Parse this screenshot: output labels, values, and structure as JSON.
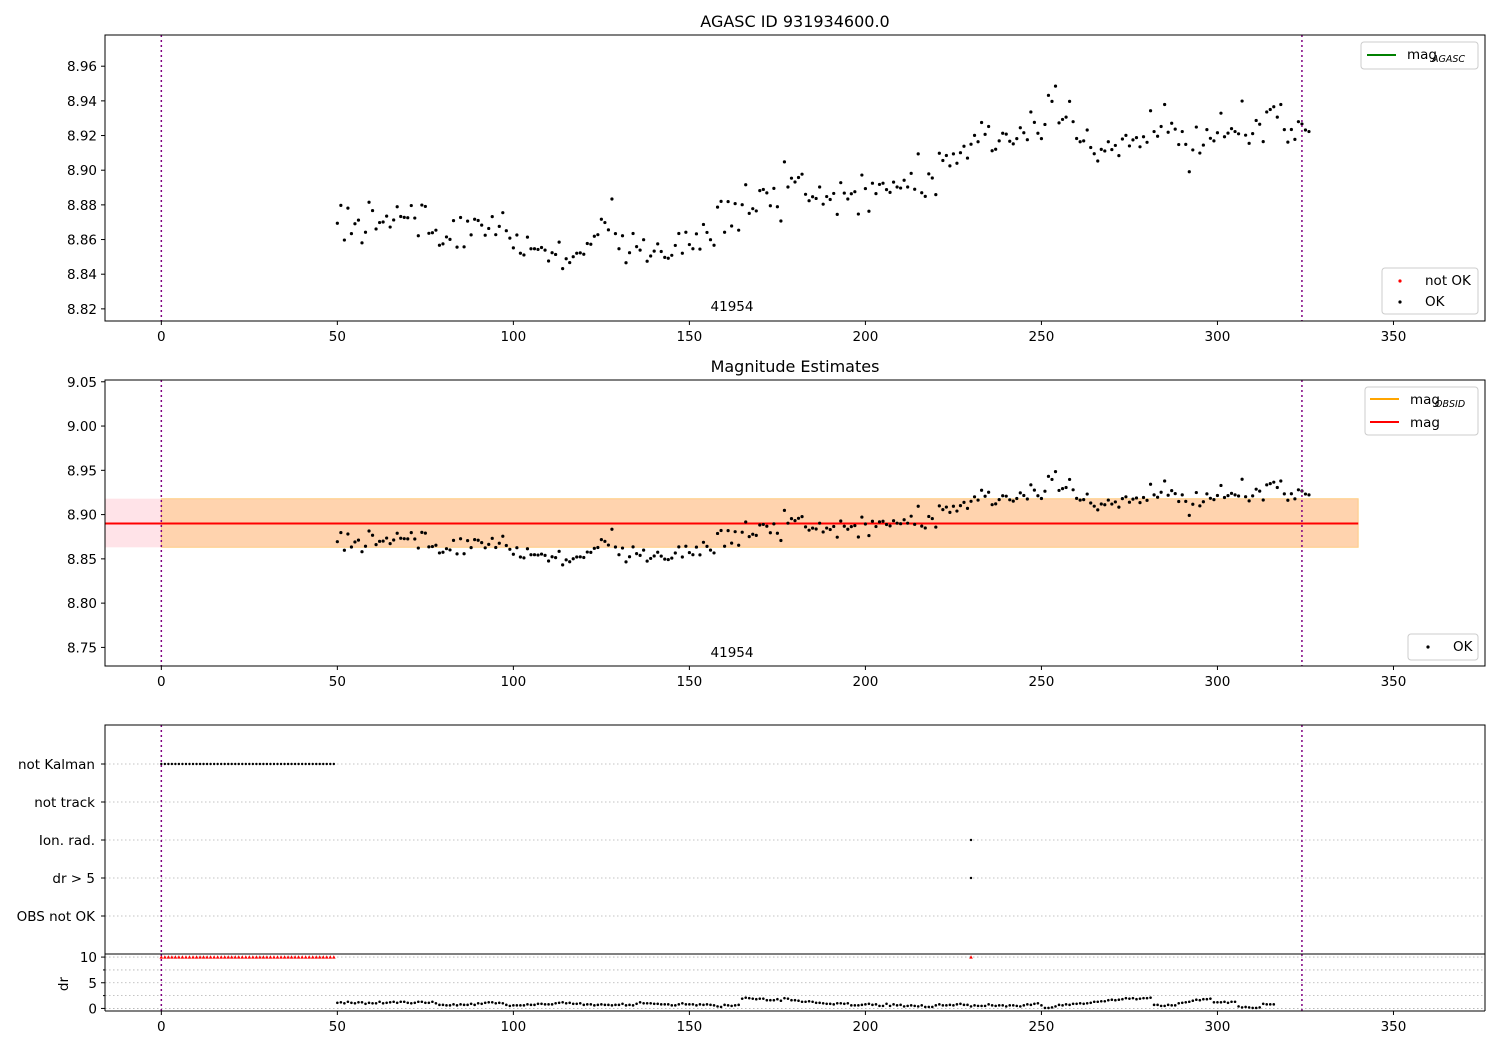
{
  "chart_data": [
    {
      "type": "scatter",
      "title": "AGASC ID 931934600.0",
      "annotation": "41954",
      "xlim": [
        -16,
        376
      ],
      "ylim": [
        8.813,
        8.978
      ],
      "xticks": [
        0,
        50,
        100,
        150,
        200,
        250,
        300,
        350
      ],
      "yticks": [
        8.82,
        8.84,
        8.86,
        8.88,
        8.9,
        8.92,
        8.94,
        8.96
      ],
      "vlines": [
        0,
        324
      ],
      "legend_lines": [
        {
          "label": "mag",
          "subscript": "AGASC",
          "color": "#008000"
        }
      ],
      "legend_points": [
        {
          "label": "not OK",
          "color": "#ff0000"
        },
        {
          "label": "OK",
          "color": "#000000"
        }
      ],
      "series": [
        {
          "name": "OK",
          "color": "#000000",
          "x_start": 50,
          "x_step": 1,
          "y": [
            8.8694,
            8.8797,
            8.8597,
            8.8781,
            8.8634,
            8.8691,
            8.8712,
            8.8581,
            8.8642,
            8.8815,
            8.8767,
            8.8661,
            8.8698,
            8.8701,
            8.8735,
            8.8672,
            8.8713,
            8.8789,
            8.8733,
            8.8728,
            8.8726,
            8.8796,
            8.8724,
            8.8622,
            8.8799,
            8.8791,
            8.8636,
            8.8639,
            8.8654,
            8.8567,
            8.8575,
            8.8615,
            8.8601,
            8.8709,
            8.8556,
            8.8727,
            8.8558,
            8.8706,
            8.8627,
            8.8717,
            8.871,
            8.8683,
            8.8625,
            8.8664,
            8.8732,
            8.8628,
            8.8676,
            8.8755,
            8.8651,
            8.8608,
            8.8552,
            8.8626,
            8.8521,
            8.8511,
            8.8614,
            8.8547,
            8.8547,
            8.8543,
            8.8554,
            8.8539,
            8.8476,
            8.8524,
            8.8514,
            8.8585,
            8.8432,
            8.8489,
            8.8467,
            8.8501,
            8.8521,
            8.8523,
            8.8515,
            8.8577,
            8.8573,
            8.8619,
            8.8628,
            8.8717,
            8.8698,
            8.8656,
            8.8834,
            8.8634,
            8.8547,
            8.8622,
            8.8466,
            8.8524,
            8.8635,
            8.8559,
            8.8539,
            8.8599,
            8.8475,
            8.8505,
            8.8533,
            8.8575,
            8.8531,
            8.8497,
            8.8492,
            8.8509,
            8.8566,
            8.8635,
            8.8521,
            8.8642,
            8.8571,
            8.8547,
            8.8633,
            8.8545,
            8.8687,
            8.8641,
            8.8599,
            8.8567,
            8.8787,
            8.882,
            8.8642,
            8.8819,
            8.8678,
            8.8807,
            8.8654,
            8.8801,
            8.8916,
            8.8751,
            8.8778,
            8.8765,
            8.8882,
            8.8889,
            8.8869,
            8.8795,
            8.8895,
            8.8789,
            8.8707,
            8.9048,
            8.8903,
            8.8954,
            8.8932,
            8.8958,
            8.8977,
            8.8861,
            8.8824,
            8.8847,
            8.8837,
            8.8903,
            8.8804,
            8.8848,
            8.8831,
            8.8866,
            8.8745,
            8.8928,
            8.8868,
            8.8834,
            8.8864,
            8.8876,
            8.8747,
            8.8972,
            8.8894,
            8.8763,
            8.8925,
            8.8865,
            8.8918,
            8.8925,
            8.8888,
            8.8872,
            8.8931,
            8.8903,
            8.8897,
            8.8942,
            8.8903,
            8.8982,
            8.889,
            8.9094,
            8.887,
            8.8849,
            8.8979,
            8.8955,
            8.8859,
            8.9098,
            8.9056,
            8.9085,
            8.9025,
            8.9094,
            8.904,
            8.9101,
            8.9138,
            8.907,
            8.915,
            8.9201,
            8.9164,
            8.9275,
            8.9207,
            8.9252,
            8.9112,
            8.9121,
            8.9169,
            8.9213,
            8.9208,
            8.9167,
            8.9152,
            8.9182,
            8.9245,
            8.9216,
            8.9176,
            8.9336,
            8.9276,
            8.9213,
            8.9182,
            8.9264,
            8.9432,
            8.9397,
            8.9485,
            8.9273,
            8.9293,
            8.9306,
            8.9397,
            8.928,
            8.9183,
            8.9164,
            8.9169,
            8.9232,
            8.9131,
            8.9095,
            8.9053,
            8.912,
            8.9111,
            8.9164,
            8.9119,
            8.9143,
            8.9084,
            8.918,
            8.9201,
            8.914,
            8.9175,
            8.9188,
            8.9135,
            8.9193,
            8.9161,
            8.9343,
            8.9223,
            8.9196,
            8.9252,
            8.9379,
            8.9219,
            8.9271,
            8.9237,
            8.9148,
            8.9223,
            8.9149,
            8.8991,
            8.9117,
            8.9249,
            8.9099,
            8.9145,
            8.9234,
            8.9184,
            8.9169,
            8.9216,
            8.9329,
            8.9193,
            8.9214,
            8.924,
            8.9223,
            8.921,
            8.9399,
            8.9202,
            8.9155,
            8.9211,
            8.9287,
            8.9265,
            8.9165,
            8.9336,
            8.935,
            8.9366,
            8.9306,
            8.9379,
            8.9234,
            8.9162,
            8.9235,
            8.9178,
            8.928,
            8.9267,
            8.9232,
            8.9223
          ]
        }
      ]
    },
    {
      "type": "scatter",
      "title": "Magnitude Estimates",
      "annotation": "41954",
      "xlim": [
        -16,
        376
      ],
      "ylim": [
        8.729,
        9.052
      ],
      "xticks": [
        0,
        50,
        100,
        150,
        200,
        250,
        300,
        350
      ],
      "yticks": [
        8.75,
        8.8,
        8.85,
        8.9,
        8.95,
        9.0,
        9.05
      ],
      "vlines": [
        0,
        324
      ],
      "mag_line": {
        "y": 8.89,
        "x_range": [
          -16,
          340
        ],
        "color": "#ff0000"
      },
      "mag_band": {
        "y_range": [
          8.863,
          8.918
        ],
        "x_range": [
          -16,
          340
        ],
        "color": "#ffc0cb"
      },
      "obsid_band": {
        "y_range": [
          8.863,
          8.918
        ],
        "x_range": [
          0,
          340
        ],
        "color": "#ffa500"
      },
      "legend_lines": [
        {
          "label": "mag",
          "subscript": "OBSID",
          "color": "#ffa500"
        },
        {
          "label": "mag",
          "subscript": "",
          "color": "#ff0000"
        }
      ],
      "legend_points": [
        {
          "label": "OK",
          "color": "#000000"
        }
      ],
      "series_ref": "same OK points as first panel"
    },
    {
      "type": "scatter",
      "title": "",
      "xlim": [
        -16,
        376
      ],
      "categories": [
        "not Kalman",
        "not track",
        "Ion. rad.",
        "dr > 5",
        "OBS not OK"
      ],
      "vlines": [
        0,
        324
      ],
      "flags": {
        "not Kalman": {
          "x_range": [
            0,
            49
          ],
          "step": 1
        },
        "Ion. rad.": {
          "x": [
            230
          ]
        },
        "dr > 5": {
          "x": [
            230
          ]
        }
      }
    },
    {
      "type": "scatter",
      "ylabel": "dr",
      "xlim": [
        -16,
        376
      ],
      "ylim": [
        -0.5,
        10.6
      ],
      "yticks": [
        0,
        5,
        10
      ],
      "xticks": [
        0,
        50,
        100,
        150,
        200,
        250,
        300,
        350
      ],
      "vlines": [
        0,
        324
      ],
      "clipped_red": {
        "x_range": [
          0,
          49
        ],
        "extra_x": [
          230
        ],
        "y": 10
      },
      "dr_series": {
        "x_start": 50,
        "y": [
          1.1,
          1.2,
          1.0,
          1.3,
          1.1,
          1.0,
          1.2,
          1.2,
          0.9,
          1.1,
          1.0,
          1.0,
          1.3,
          1.0,
          1.1,
          1.2,
          1.3,
          1.1,
          1.3,
          1.3,
          1.1,
          1.0,
          1.1,
          1.3,
          1.3,
          1.1,
          1.1,
          1.3,
          1.0,
          0.7,
          0.7,
          0.6,
          0.6,
          0.8,
          0.6,
          0.8,
          0.7,
          0.7,
          0.9,
          0.7,
          1.0,
          0.9,
          1.1,
          1.2,
          1.2,
          1.0,
          1.1,
          1.0,
          0.7,
          0.5,
          0.6,
          0.6,
          0.6,
          0.6,
          0.8,
          0.7,
          0.7,
          0.9,
          0.9,
          0.8,
          0.8,
          0.8,
          1.0,
          1.1,
          1.2,
          1.0,
          1.1,
          0.9,
          0.9,
          1.0,
          0.7,
          0.8,
          0.8,
          0.6,
          0.7,
          0.8,
          0.7,
          0.7,
          0.6,
          0.7,
          0.7,
          0.9,
          0.6,
          0.7,
          0.6,
          0.9,
          1.2,
          1.0,
          1.0,
          1.0,
          0.9,
          0.9,
          0.8,
          0.8,
          0.8,
          0.6,
          0.6,
          0.8,
          1.0,
          0.8,
          0.8,
          0.8,
          0.6,
          0.8,
          0.7,
          0.8,
          0.7,
          0.6,
          0.4,
          0.3,
          0.7,
          0.6,
          0.5,
          0.6,
          0.7,
          1.9,
          2.1,
          2.0,
          1.9,
          1.8,
          1.9,
          1.9,
          1.6,
          1.6,
          1.6,
          1.8,
          1.5,
          2.0,
          1.9,
          1.6,
          1.6,
          1.5,
          1.3,
          1.3,
          1.4,
          1.3,
          1.1,
          1.1,
          1.0,
          0.9,
          0.9,
          0.8,
          1.0,
          1.0,
          0.9,
          1.0,
          0.6,
          0.6,
          0.6,
          0.7,
          0.8,
          0.9,
          0.7,
          0.8,
          0.5,
          0.5,
          0.9,
          0.5,
          0.8,
          0.6,
          0.7,
          0.4,
          0.5,
          0.6,
          0.5,
          0.4,
          0.6,
          0.3,
          0.3,
          0.3,
          0.6,
          0.8,
          0.6,
          0.6,
          0.7,
          0.6,
          0.8,
          0.9,
          0.7,
          0.7,
          0.4,
          0.6,
          0.5,
          0.5,
          0.5,
          0.8,
          0.6,
          0.5,
          0.6,
          0.6,
          0.4,
          0.6,
          0.6,
          0.5,
          0.4,
          0.6,
          0.8,
          0.7,
          0.9,
          1.0,
          0.6,
          0.1,
          0.1,
          0.2,
          0.4,
          0.7,
          0.6,
          0.8,
          0.7,
          0.9,
          0.9,
          1.0,
          0.9,
          1.0,
          1.1,
          1.3,
          1.3,
          1.4,
          1.4,
          1.6,
          1.7,
          1.6,
          1.7,
          1.8,
          2.0,
          1.9,
          2.0,
          1.8,
          1.9,
          2.0,
          2.0,
          2.1,
          0.7,
          0.7,
          0.5,
          0.5,
          0.7,
          0.6,
          0.6,
          1.0,
          1.1,
          1.2,
          1.3,
          1.5,
          1.7,
          1.6,
          1.8,
          1.8,
          1.9,
          1.2,
          1.2,
          1.2,
          1.3,
          1.1,
          1.3,
          1.3,
          0.4,
          0.2,
          0.3,
          0.2,
          0.1,
          0.1,
          0.2,
          0.9,
          0.8,
          0.8,
          0.8
        ]
      }
    }
  ]
}
